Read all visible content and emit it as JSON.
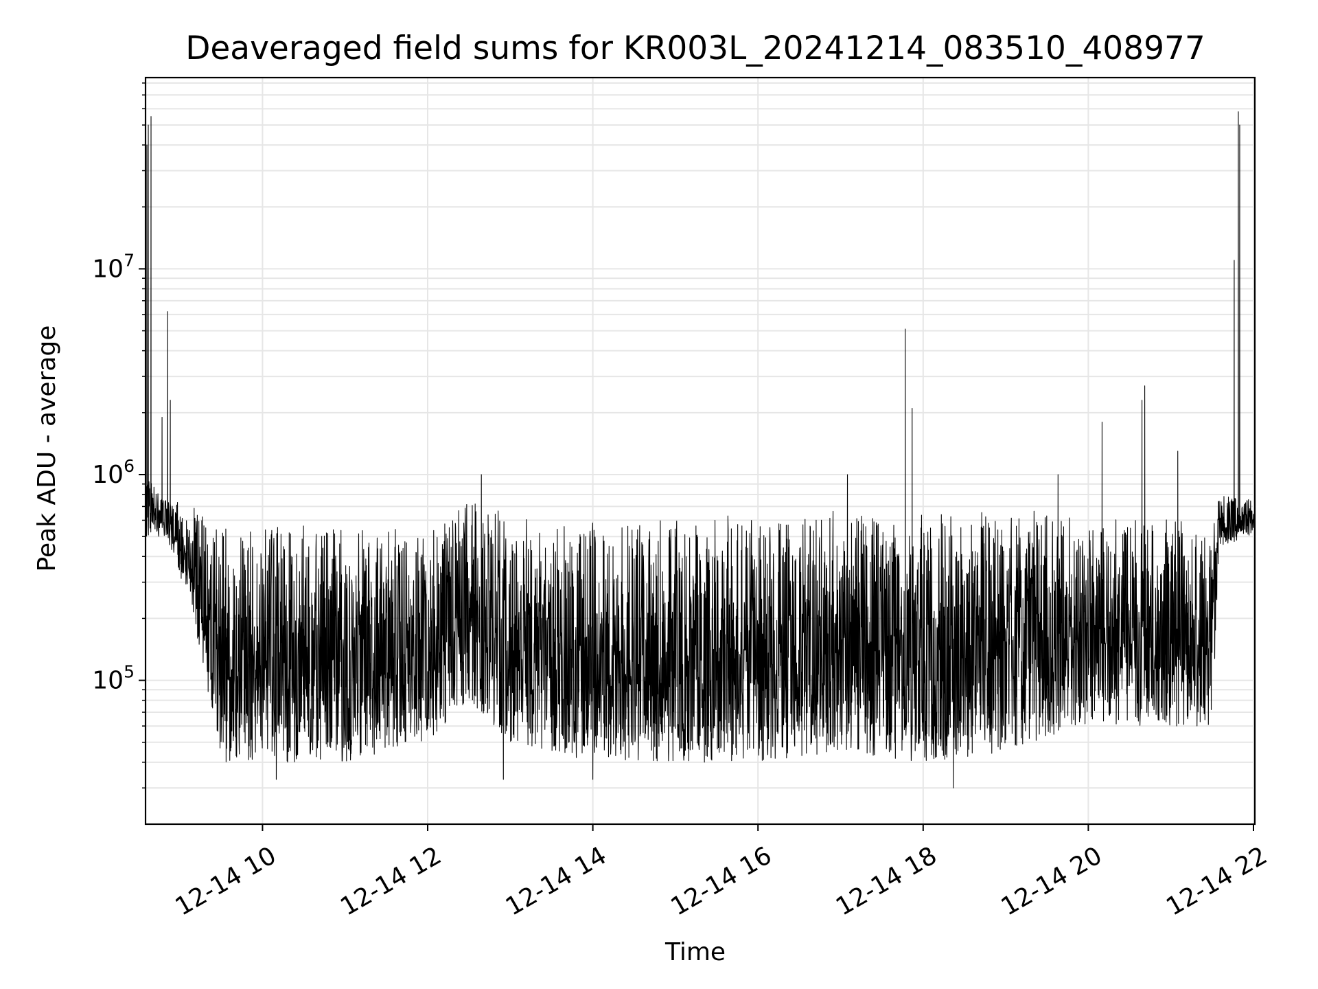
{
  "chart_data": {
    "type": "line",
    "title": "Deaveraged field sums for KR003L_20241214_083510_408977",
    "xlabel": "Time",
    "ylabel": "Peak ADU - average",
    "yscale": "log",
    "grid": true,
    "grid_which": "both",
    "line_color": "#000000",
    "grid_color": "#e6e6e6",
    "xlim": [
      "2024-12-14 08:35",
      "2024-12-14 22:01"
    ],
    "ylim": [
      20000,
      85000000
    ],
    "xticks": [
      {
        "value": "2024-12-14 10:00",
        "label": "12-14 10"
      },
      {
        "value": "2024-12-14 12:00",
        "label": "12-14 12"
      },
      {
        "value": "2024-12-14 14:00",
        "label": "12-14 14"
      },
      {
        "value": "2024-12-14 16:00",
        "label": "12-14 16"
      },
      {
        "value": "2024-12-14 18:00",
        "label": "12-14 18"
      },
      {
        "value": "2024-12-14 20:00",
        "label": "12-14 20"
      },
      {
        "value": "2024-12-14 22:00",
        "label": "12-14 22"
      }
    ],
    "yticks": [
      {
        "value": 100000,
        "base": "10",
        "exp": "5"
      },
      {
        "value": 1000000,
        "base": "10",
        "exp": "6"
      },
      {
        "value": 10000000,
        "base": "10",
        "exp": "7"
      }
    ],
    "series": [
      {
        "band_points": [
          [
            "2024-12-14 08:35",
            1000000,
            500000
          ],
          [
            "2024-12-14 08:50",
            800000,
            500000
          ],
          [
            "2024-12-14 09:10",
            700000,
            200000
          ],
          [
            "2024-12-14 09:30",
            650000,
            40000
          ],
          [
            "2024-12-14 10:00",
            600000,
            40000
          ],
          [
            "2024-12-14 11:00",
            600000,
            40000
          ],
          [
            "2024-12-14 12:00",
            550000,
            50000
          ],
          [
            "2024-12-14 12:30",
            750000,
            80000
          ],
          [
            "2024-12-14 13:00",
            650000,
            50000
          ],
          [
            "2024-12-14 14:00",
            600000,
            40000
          ],
          [
            "2024-12-14 15:00",
            600000,
            40000
          ],
          [
            "2024-12-14 16:00",
            650000,
            40000
          ],
          [
            "2024-12-14 17:00",
            700000,
            45000
          ],
          [
            "2024-12-14 18:00",
            650000,
            40000
          ],
          [
            "2024-12-14 19:00",
            700000,
            45000
          ],
          [
            "2024-12-14 20:00",
            700000,
            60000
          ],
          [
            "2024-12-14 21:00",
            650000,
            60000
          ],
          [
            "2024-12-14 21:30",
            700000,
            60000
          ],
          [
            "2024-12-14 21:35",
            800000,
            450000
          ],
          [
            "2024-12-14 22:01",
            750000,
            500000
          ]
        ],
        "spikes": [
          [
            "2024-12-14 08:36",
            40000000
          ],
          [
            "2024-12-14 08:37",
            50000000
          ],
          [
            "2024-12-14 08:39",
            55000000
          ],
          [
            "2024-12-14 08:51",
            6200000
          ],
          [
            "2024-12-14 08:53",
            2300000
          ],
          [
            "2024-12-14 08:47",
            1900000
          ],
          [
            "2024-12-14 12:39",
            1000000
          ],
          [
            "2024-12-14 17:05",
            1000000
          ],
          [
            "2024-12-14 17:47",
            5100000
          ],
          [
            "2024-12-14 17:52",
            2100000
          ],
          [
            "2024-12-14 19:38",
            1000000
          ],
          [
            "2024-12-14 20:10",
            1800000
          ],
          [
            "2024-12-14 20:39",
            2300000
          ],
          [
            "2024-12-14 20:41",
            2700000
          ],
          [
            "2024-12-14 21:05",
            1300000
          ],
          [
            "2024-12-14 21:46",
            11000000
          ],
          [
            "2024-12-14 21:49",
            58000000
          ],
          [
            "2024-12-14 21:50",
            50000000
          ],
          [
            "2024-12-14 18:22",
            30000
          ],
          [
            "2024-12-14 12:55",
            33000
          ],
          [
            "2024-12-14 10:10",
            33000
          ],
          [
            "2024-12-14 14:00",
            33000
          ]
        ]
      }
    ]
  }
}
